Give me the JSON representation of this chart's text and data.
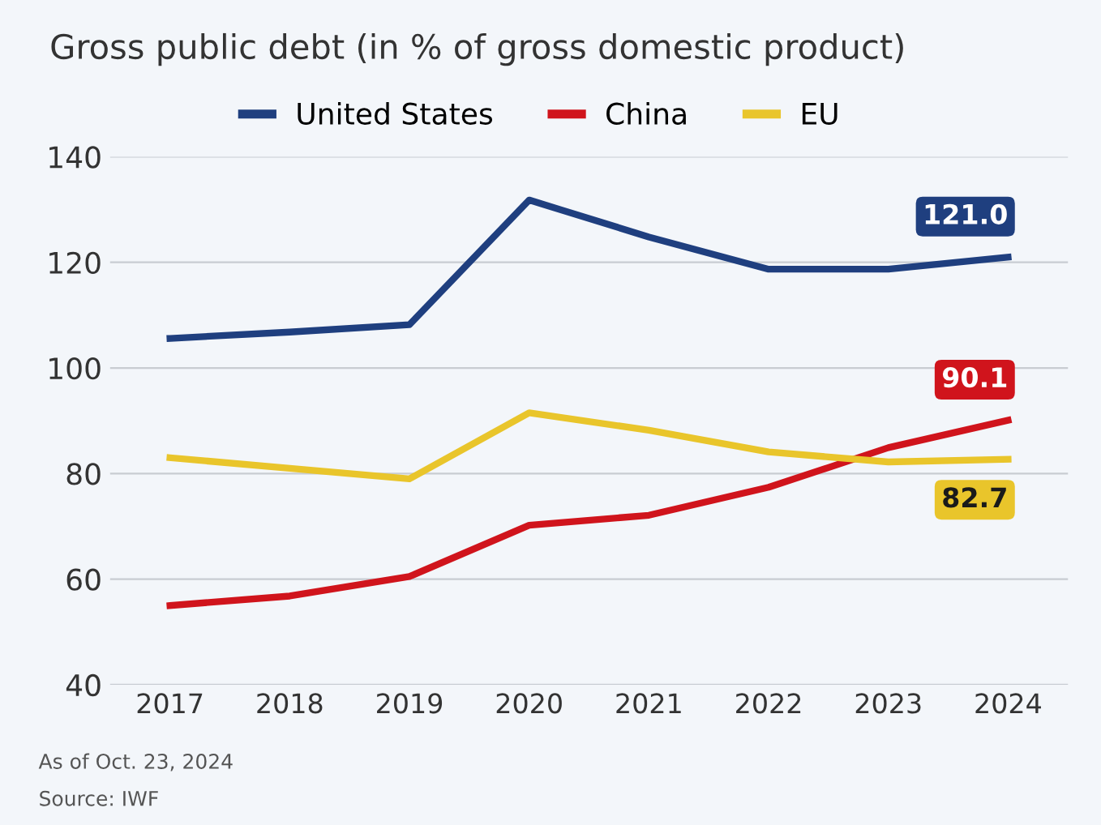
{
  "chart_data": {
    "type": "line",
    "title": "Gross public debt (in % of gross domestic product)",
    "categories": [
      "2017",
      "2018",
      "2019",
      "2020",
      "2021",
      "2022",
      "2023",
      "2024"
    ],
    "series": [
      {
        "name": "United States",
        "color": "#1f3f7f",
        "values": [
          105.6,
          106.8,
          108.2,
          131.8,
          124.8,
          118.7,
          118.7,
          121.0
        ],
        "value_labels": [
          null,
          null,
          null,
          null,
          null,
          null,
          null,
          "121.0"
        ]
      },
      {
        "name": "China",
        "color": "#d0141c",
        "values": [
          55.0,
          56.8,
          60.5,
          70.2,
          72.1,
          77.4,
          84.9,
          90.1
        ],
        "value_labels": [
          null,
          null,
          null,
          null,
          null,
          null,
          null,
          "90.1"
        ]
      },
      {
        "name": "EU",
        "color": "#e9c52b",
        "values": [
          83.0,
          81.0,
          79.0,
          91.5,
          88.2,
          84.1,
          82.2,
          82.7
        ],
        "value_labels": [
          null,
          null,
          null,
          null,
          null,
          null,
          null,
          "82.7"
        ]
      }
    ],
    "ylim": [
      40,
      140
    ],
    "yticks": [
      40,
      60,
      80,
      100,
      120,
      140
    ],
    "grid": "y",
    "legend": "top",
    "marker": "none",
    "line_style": "solid",
    "annotations": [
      "As of Oct. 23, 2024",
      "Source: IWF"
    ]
  }
}
